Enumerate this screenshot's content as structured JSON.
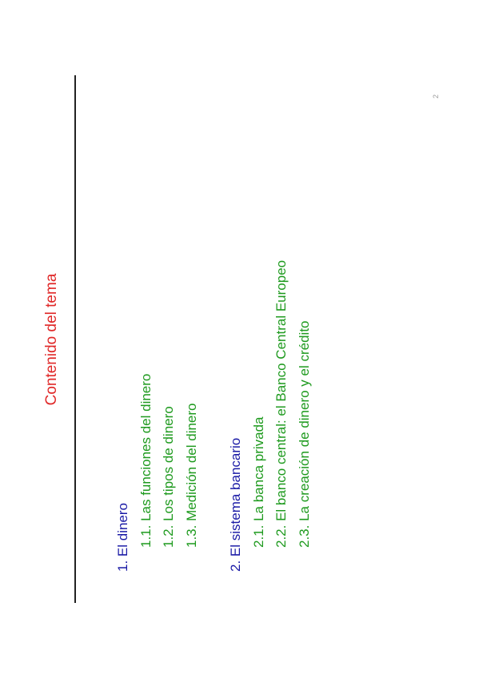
{
  "slide": {
    "title": "Contenido del tema",
    "page_number": "2"
  },
  "toc": [
    {
      "label": "1. El dinero",
      "items": [
        "1.1. Las funciones del dinero",
        "1.2. Los tipos de dinero",
        "1.3. Medición del dinero"
      ]
    },
    {
      "label": "2. El sistema bancario",
      "items": [
        "2.1. La banca privada",
        "2.2. El banco central: el Banco Central Europeo",
        "2.3. La creación de dinero y el crédito"
      ]
    }
  ],
  "colors": {
    "title": "#e02828",
    "section": "#1a1aa6",
    "subsection": "#1e9a1e"
  }
}
